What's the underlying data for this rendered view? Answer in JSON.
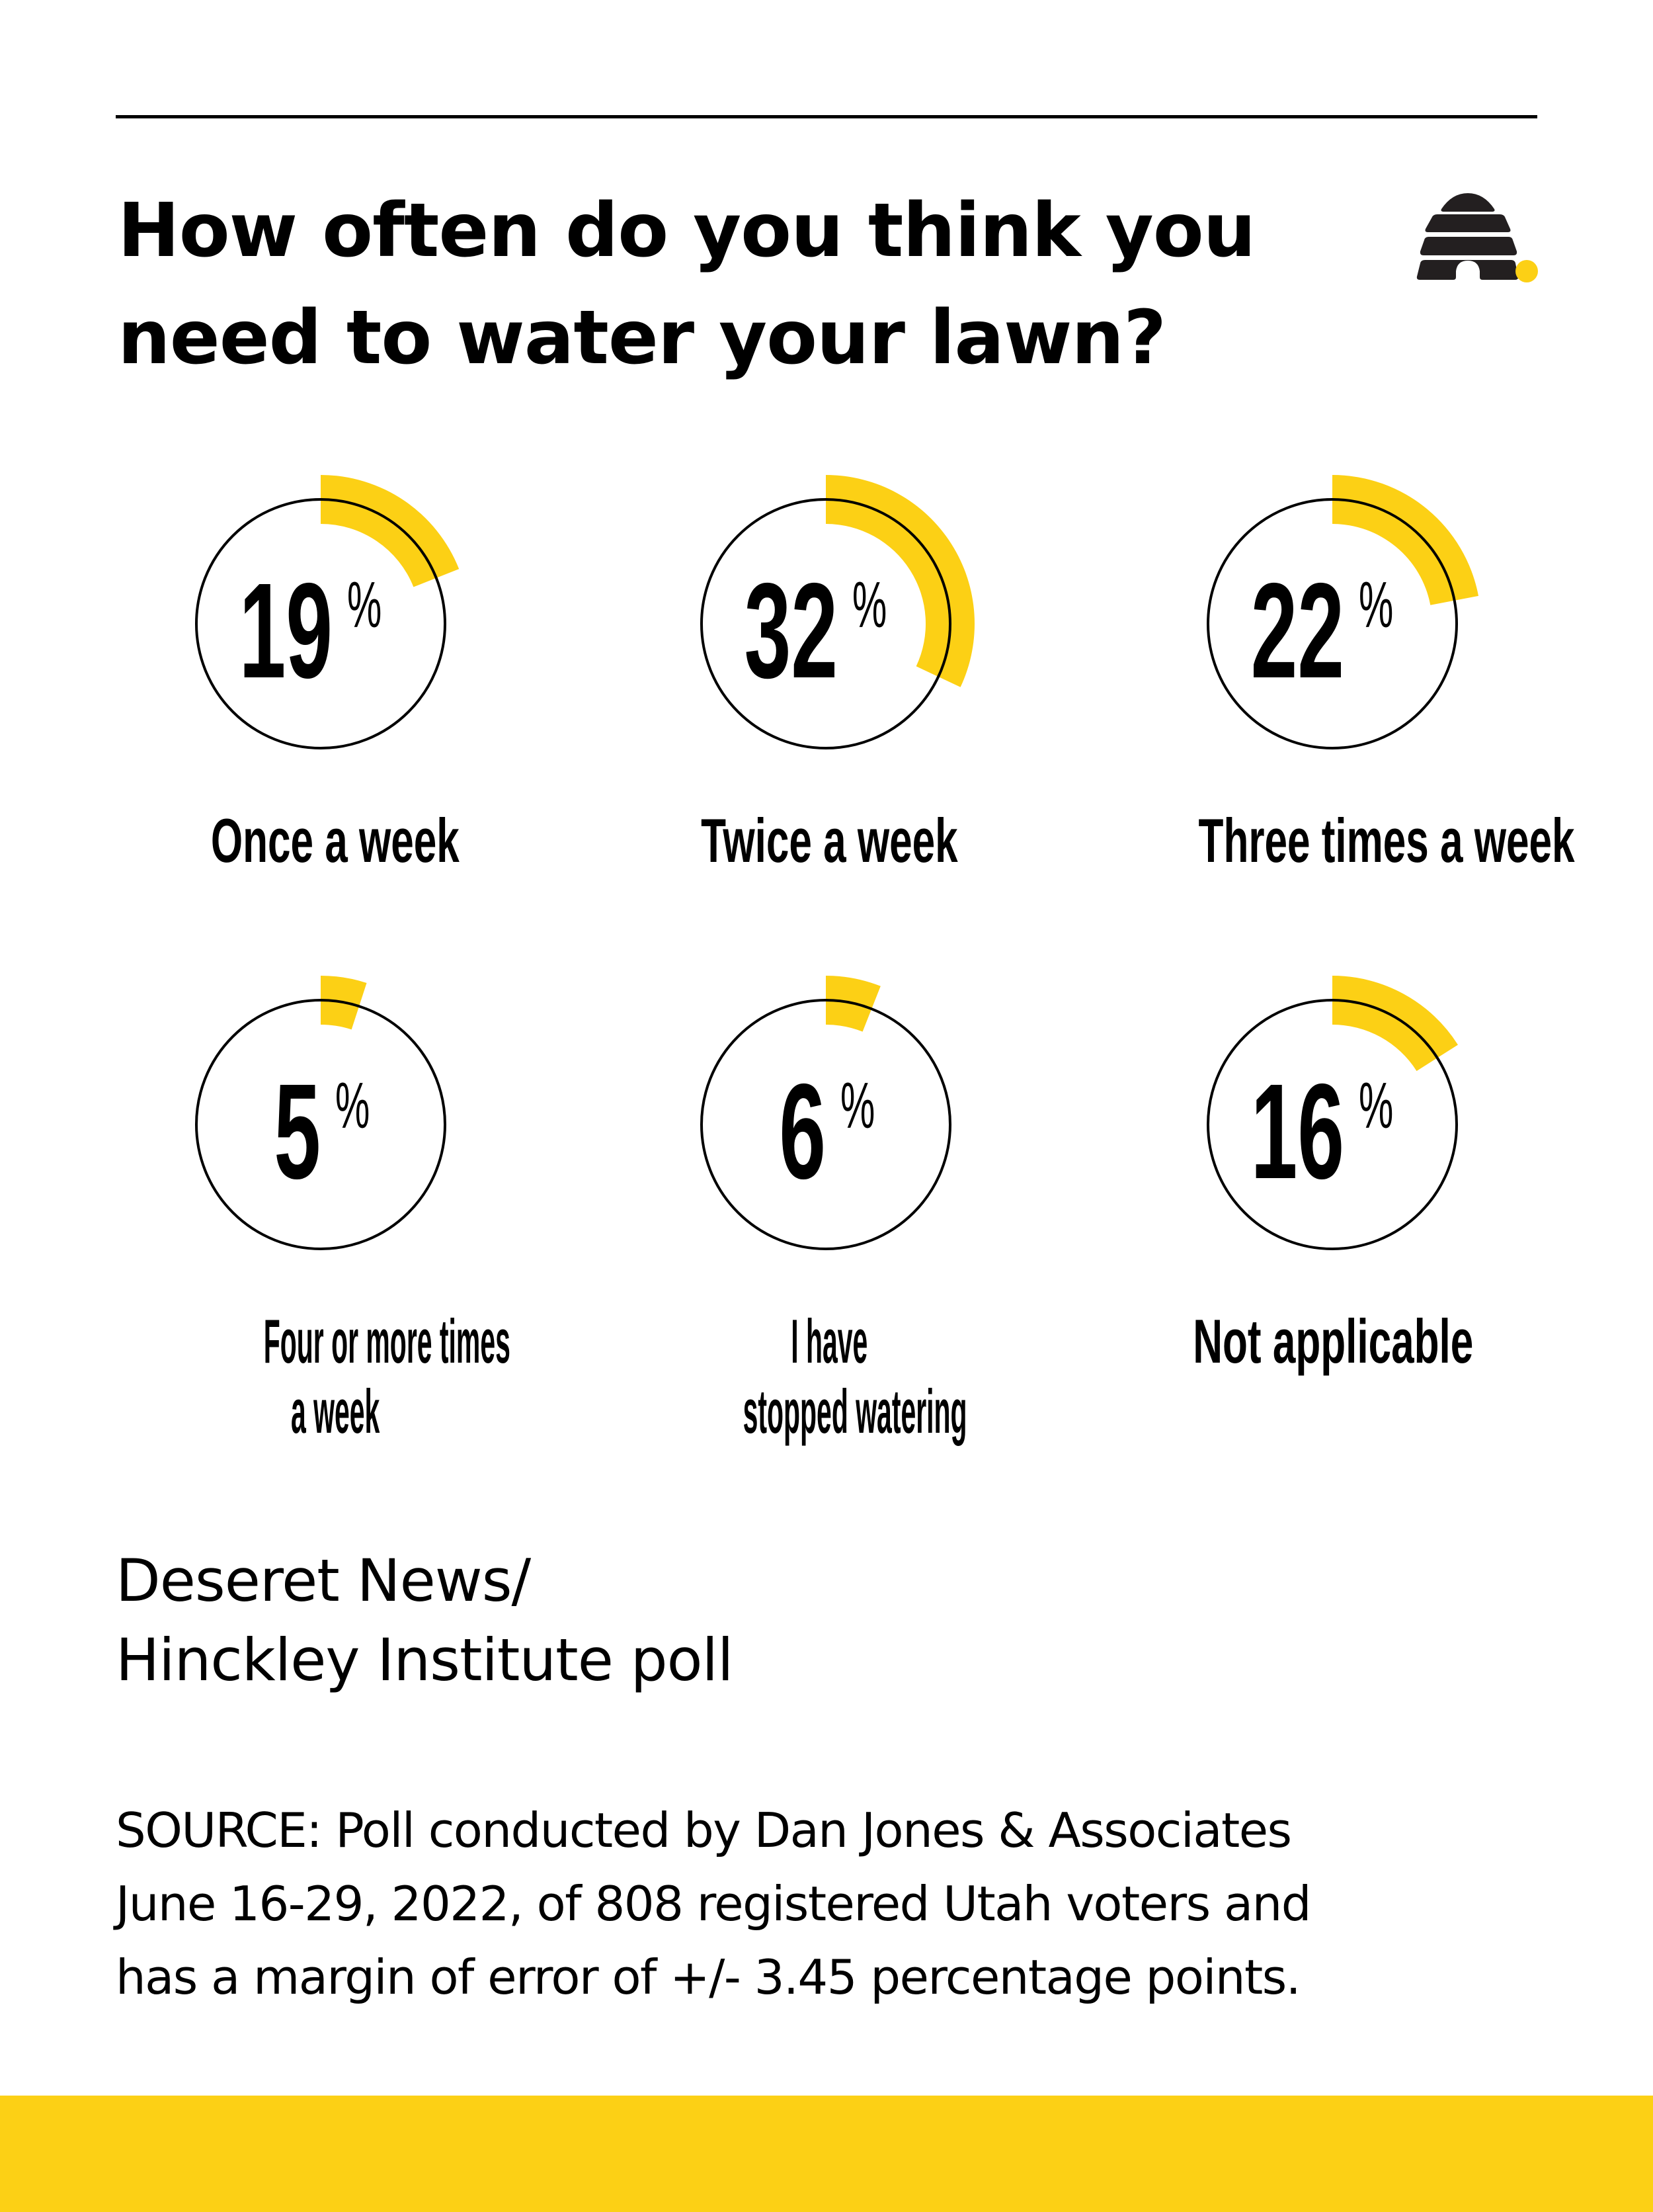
{
  "header": {
    "title_lines": [
      "How often do you think you",
      "need to water your lawn?"
    ]
  },
  "logo": {
    "name": "beehive-logo",
    "hive_color": "#231f20",
    "dot_color": "#FCD015"
  },
  "colors": {
    "accent": "#FCD015",
    "ring": "#000000",
    "text": "#000000",
    "background": "#FFFFFF"
  },
  "items": [
    {
      "value": "19",
      "pct_symbol": "%",
      "label_lines": [
        "Once a week"
      ]
    },
    {
      "value": "32",
      "pct_symbol": "%",
      "label_lines": [
        "Twice a week"
      ]
    },
    {
      "value": "22",
      "pct_symbol": "%",
      "label_lines": [
        "Three times a week"
      ]
    },
    {
      "value": "5",
      "pct_symbol": "%",
      "label_lines": [
        "Four or more times",
        "a week"
      ]
    },
    {
      "value": "6",
      "pct_symbol": "%",
      "label_lines": [
        "I have",
        "stopped watering"
      ]
    },
    {
      "value": "16",
      "pct_symbol": "%",
      "label_lines": [
        "Not applicable"
      ]
    }
  ],
  "footer": {
    "credit_lines": [
      "Deseret News/",
      "Hinckley Institute poll"
    ],
    "source_lines": [
      "SOURCE: Poll conducted by Dan Jones & Associates",
      "June 16-29, 2022, of 808 registered Utah voters and",
      "has a margin of error of +/- 3.45 percentage points."
    ]
  },
  "chart_data": {
    "type": "pie",
    "subtype": "radial-progress",
    "title": "How often do you think you need to water your lawn?",
    "categories": [
      "Once a week",
      "Twice a week",
      "Three times a week",
      "Four or more times a week",
      "I have stopped watering",
      "Not applicable"
    ],
    "values": [
      19,
      32,
      22,
      5,
      6,
      16
    ],
    "unit": "%",
    "layout": {
      "rows": 2,
      "cols": 3,
      "legend": "none",
      "grid": false
    },
    "source": "SOURCE: Poll conducted by Dan Jones & Associates June 16-29, 2022, of 808 registered Utah voters and has a margin of error of +/- 3.45 percentage points.",
    "credit": "Deseret News/ Hinckley Institute poll"
  }
}
